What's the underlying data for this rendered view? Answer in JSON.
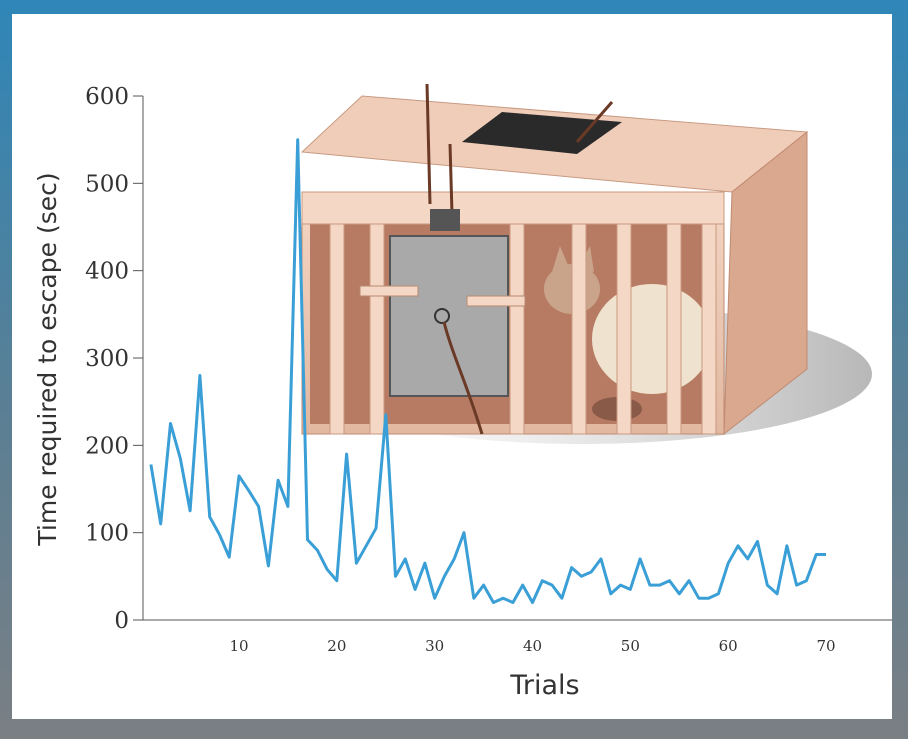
{
  "chart_data": {
    "type": "line",
    "title": "",
    "xlabel": "Trials",
    "ylabel": "Time required to escape (sec)",
    "xlim": [
      1,
      70
    ],
    "ylim": [
      0,
      600
    ],
    "xticks": [
      10,
      20,
      30,
      40,
      50,
      60,
      70
    ],
    "yticks": [
      0,
      100,
      200,
      300,
      400,
      500,
      600
    ],
    "grid": false,
    "legend": "none",
    "colors": {
      "line": "#3a9fd6",
      "axis": "#555555"
    },
    "illustration": "puzzle-box-with-cat",
    "series": [
      {
        "x": [
          1,
          2,
          3,
          4,
          5,
          6,
          7,
          8,
          9,
          10,
          11,
          12,
          13,
          14,
          15,
          16,
          17,
          18,
          19,
          20,
          21,
          22,
          23,
          24,
          25,
          26,
          27,
          28,
          29,
          30,
          31,
          32,
          33,
          34,
          35,
          36,
          37,
          38,
          39,
          40,
          41,
          42,
          43,
          44,
          45,
          46,
          47,
          48,
          49,
          50,
          51,
          52,
          53,
          54,
          55,
          56,
          57,
          58,
          59,
          60,
          61,
          62,
          63,
          64,
          65,
          66,
          67,
          68,
          69,
          70
        ],
        "values": [
          178,
          110,
          225,
          185,
          125,
          280,
          118,
          98,
          72,
          165,
          148,
          130,
          62,
          160,
          130,
          550,
          92,
          80,
          58,
          45,
          190,
          65,
          85,
          105,
          235,
          50,
          70,
          35,
          65,
          25,
          50,
          70,
          100,
          25,
          40,
          20,
          25,
          20,
          40,
          20,
          45,
          40,
          25,
          60,
          50,
          55,
          70,
          30,
          40,
          35,
          70,
          40,
          40,
          45,
          30,
          45,
          25,
          25,
          30,
          65,
          85,
          70,
          90,
          40,
          30,
          85,
          40,
          45,
          75,
          75
        ]
      }
    ]
  }
}
